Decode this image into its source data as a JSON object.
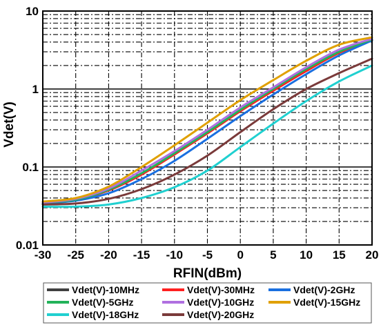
{
  "chart_data": {
    "type": "line",
    "xlabel": "RFIN(dBm)",
    "ylabel": "Vdet(V)",
    "xlim": [
      -30,
      20
    ],
    "ylim": [
      0.01,
      10
    ],
    "yscale": "log",
    "grid": true,
    "minor_grid": true,
    "legend_position": "bottom",
    "x_ticks": [
      -30,
      -25,
      -20,
      -15,
      -10,
      -5,
      0,
      5,
      10,
      15,
      20
    ],
    "x_tick_labels": [
      "-30",
      "-25",
      "-20",
      "-15",
      "-10",
      "-5",
      "0",
      "5",
      "10",
      "15",
      "20"
    ],
    "y_ticks": [
      0.01,
      0.1,
      1,
      10
    ],
    "y_tick_labels": [
      "0.01",
      "0.1",
      "1",
      "10"
    ],
    "series": [
      {
        "name": "Vdet(V)-10MHz",
        "color": "#404040",
        "x": [
          -30,
          -25,
          -20,
          -15,
          -10,
          -5,
          0,
          5,
          10,
          15,
          20
        ],
        "y": [
          0.034,
          0.038,
          0.05,
          0.08,
          0.145,
          0.27,
          0.52,
          0.95,
          1.7,
          2.9,
          4.2
        ]
      },
      {
        "name": "Vdet(V)-30MHz",
        "color": "#ff2020",
        "x": [
          -30,
          -25,
          -20,
          -15,
          -10,
          -5,
          0,
          5,
          10,
          15,
          20
        ],
        "y": [
          0.034,
          0.038,
          0.05,
          0.08,
          0.145,
          0.27,
          0.52,
          0.95,
          1.7,
          2.9,
          4.2
        ]
      },
      {
        "name": "Vdet(V)-2GHz",
        "color": "#1a6fe0",
        "x": [
          -30,
          -25,
          -20,
          -15,
          -10,
          -5,
          0,
          5,
          10,
          15,
          20
        ],
        "y": [
          0.034,
          0.037,
          0.046,
          0.07,
          0.12,
          0.23,
          0.45,
          0.85,
          1.55,
          2.7,
          4.2
        ]
      },
      {
        "name": "Vdet(V)-5GHz",
        "color": "#22b35a",
        "x": [
          -30,
          -25,
          -20,
          -15,
          -10,
          -5,
          0,
          5,
          10,
          15,
          20
        ],
        "y": [
          0.035,
          0.038,
          0.051,
          0.083,
          0.15,
          0.28,
          0.54,
          1.0,
          1.8,
          3.0,
          4.3
        ]
      },
      {
        "name": "Vdet(V)-10GHz",
        "color": "#b070e0",
        "x": [
          -30,
          -25,
          -20,
          -15,
          -10,
          -5,
          0,
          5,
          10,
          15,
          20
        ],
        "y": [
          0.035,
          0.039,
          0.053,
          0.09,
          0.16,
          0.3,
          0.58,
          1.05,
          1.9,
          3.2,
          4.4
        ]
      },
      {
        "name": "Vdet(V)-15GHz",
        "color": "#e0a000",
        "x": [
          -30,
          -25,
          -20,
          -15,
          -10,
          -5,
          0,
          5,
          10,
          15,
          20
        ],
        "y": [
          0.036,
          0.04,
          0.056,
          0.1,
          0.19,
          0.37,
          0.72,
          1.3,
          2.3,
          3.7,
          4.6
        ]
      },
      {
        "name": "Vdet(V)-18GHz",
        "color": "#20d0d0",
        "x": [
          -30,
          -25,
          -20,
          -15,
          -10,
          -5,
          0,
          5,
          10,
          15,
          20
        ],
        "y": [
          0.031,
          0.031,
          0.033,
          0.04,
          0.055,
          0.09,
          0.18,
          0.36,
          0.7,
          1.25,
          2.0
        ]
      },
      {
        "name": "Vdet(V)-20GHz",
        "color": "#7a3a3a",
        "x": [
          -30,
          -25,
          -20,
          -15,
          -10,
          -5,
          0,
          5,
          10,
          15,
          20
        ],
        "y": [
          0.033,
          0.034,
          0.039,
          0.052,
          0.08,
          0.14,
          0.28,
          0.55,
          1.0,
          1.6,
          2.45
        ]
      }
    ]
  }
}
